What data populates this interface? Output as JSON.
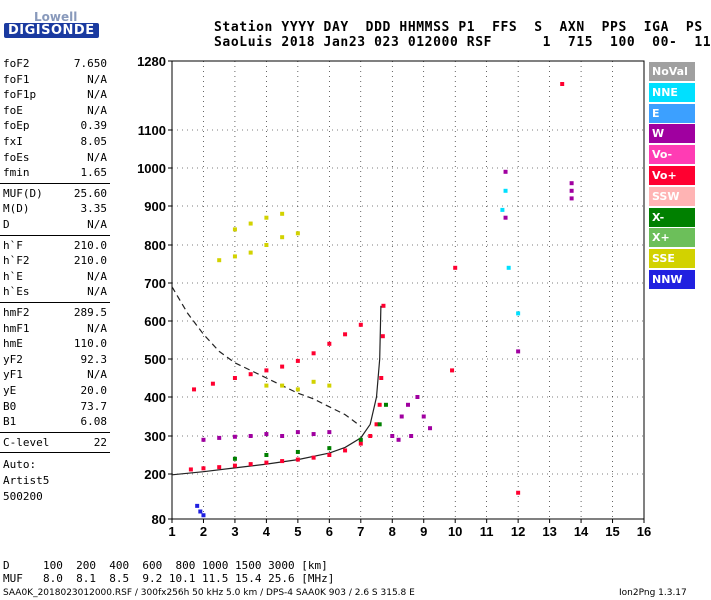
{
  "logo": {
    "line1": "Lowell",
    "line2": "DIGISONDE"
  },
  "header": {
    "line1": "Station YYYY DAY  DDD HHMMSS P1  FFS  S  AXN  PPS  IGA  PS",
    "line2": "SaoLuis 2018 Jan23 023 012000 RSF      1  715  100  00-  11"
  },
  "params": {
    "group1": [
      {
        "name": "foF2",
        "value": "7.650"
      },
      {
        "name": "foF1",
        "value": "N/A"
      },
      {
        "name": "foF1p",
        "value": "N/A"
      },
      {
        "name": "foE",
        "value": "N/A"
      },
      {
        "name": "foEp",
        "value": "0.39"
      },
      {
        "name": "fxI",
        "value": "8.05"
      },
      {
        "name": "foEs",
        "value": "N/A"
      },
      {
        "name": "fmin",
        "value": "1.65"
      }
    ],
    "group2": [
      {
        "name": "MUF(D)",
        "value": "25.60"
      },
      {
        "name": "M(D)",
        "value": "3.35"
      },
      {
        "name": "D",
        "value": "N/A"
      }
    ],
    "group3": [
      {
        "name": "h`F",
        "value": "210.0"
      },
      {
        "name": "h`F2",
        "value": "210.0"
      },
      {
        "name": "h`E",
        "value": "N/A"
      },
      {
        "name": "h`Es",
        "value": "N/A"
      }
    ],
    "group4": [
      {
        "name": "hmF2",
        "value": "289.5"
      },
      {
        "name": "hmF1",
        "value": "N/A"
      },
      {
        "name": "hmE",
        "value": "110.0"
      },
      {
        "name": "yF2",
        "value": "92.3"
      },
      {
        "name": "yF1",
        "value": "N/A"
      },
      {
        "name": "yE",
        "value": "20.0"
      },
      {
        "name": "B0",
        "value": "73.7"
      },
      {
        "name": "B1",
        "value": "6.08"
      }
    ],
    "group5": [
      {
        "name": "C-level",
        "value": "22"
      }
    ],
    "auto": [
      "Auto:",
      "Artist5",
      "500200"
    ]
  },
  "legend": [
    {
      "label": "NoVal",
      "color": "#a0a0a0"
    },
    {
      "label": "NNE",
      "color": "#00e0ff"
    },
    {
      "label": "E",
      "color": "#3ca0ff"
    },
    {
      "label": "W",
      "color": "#a000a0"
    },
    {
      "label": "Vo-",
      "color": "#ff3cb4"
    },
    {
      "label": "Vo+",
      "color": "#ff0030"
    },
    {
      "label": "SSW",
      "color": "#ffb4b4"
    },
    {
      "label": "X-",
      "color": "#008000"
    },
    {
      "label": "X+",
      "color": "#6cbf5a"
    },
    {
      "label": "SSE",
      "color": "#d2d200"
    },
    {
      "label": "NNW",
      "color": "#2020e0"
    }
  ],
  "muf_table": {
    "d_label": "D",
    "d_values": "100  200  400  600  800 1000 1500 3000 [km]",
    "muf_label": "MUF",
    "muf_values": "8.0  8.1  8.5  9.2 10.1 11.5 15.4 25.6 [MHz]"
  },
  "footer": {
    "left": "SAA0K_2018023012000.RSF / 300fx256h 50 kHz 5.0 km / DPS-4 SAA0K 903 / 2.6 S 315.8 E",
    "right": "Ion2Png 1.3.17"
  },
  "chart_data": {
    "type": "scatter",
    "title": "",
    "xlabel": "",
    "ylabel": "",
    "xlim": [
      1,
      16
    ],
    "ylim": [
      80,
      1280
    ],
    "x_ticks": [
      "1",
      "2",
      "3",
      "4",
      "5",
      "6",
      "7",
      "8",
      "9",
      "10",
      "11",
      "12",
      "13",
      "14",
      "15",
      "16"
    ],
    "y_ticks": [
      "80",
      "200",
      "300",
      "400",
      "500",
      "600",
      "700",
      "800",
      "900",
      "1000",
      "1100",
      "1280"
    ],
    "grid": "dotted",
    "axis_colors": {
      "ticks": "#000000"
    },
    "series": [
      {
        "color_key": "Vo+",
        "points": [
          [
            1.6,
            212
          ],
          [
            2.0,
            215
          ],
          [
            2.5,
            218
          ],
          [
            3.0,
            222
          ],
          [
            3.5,
            226
          ],
          [
            4.0,
            230
          ],
          [
            4.5,
            234
          ],
          [
            5.0,
            238
          ],
          [
            5.5,
            243
          ],
          [
            6.0,
            250
          ],
          [
            6.5,
            262
          ],
          [
            7.0,
            280
          ],
          [
            7.3,
            300
          ],
          [
            7.5,
            330
          ],
          [
            7.6,
            380
          ],
          [
            7.65,
            450
          ],
          [
            7.7,
            560
          ],
          [
            7.72,
            640
          ]
        ]
      },
      {
        "color_key": "Vo+",
        "points": [
          [
            1.7,
            420
          ],
          [
            2.3,
            435
          ],
          [
            3.0,
            450
          ],
          [
            3.5,
            460
          ],
          [
            4.0,
            470
          ],
          [
            4.5,
            480
          ],
          [
            5.0,
            495
          ],
          [
            5.5,
            515
          ],
          [
            6.0,
            540
          ],
          [
            6.5,
            565
          ],
          [
            7.0,
            590
          ]
        ]
      },
      {
        "color_key": "W",
        "points": [
          [
            2.0,
            290
          ],
          [
            2.5,
            295
          ],
          [
            3.0,
            298
          ],
          [
            3.5,
            300
          ],
          [
            4.0,
            305
          ],
          [
            4.5,
            300
          ],
          [
            5.0,
            310
          ],
          [
            5.5,
            305
          ],
          [
            6.0,
            310
          ]
        ]
      },
      {
        "color_key": "W",
        "points": [
          [
            8.0,
            300
          ],
          [
            8.3,
            350
          ],
          [
            8.5,
            380
          ],
          [
            8.8,
            400
          ],
          [
            9.0,
            350
          ],
          [
            9.2,
            320
          ],
          [
            8.2,
            290
          ],
          [
            8.6,
            300
          ]
        ]
      },
      {
        "color_key": "SSE",
        "points": [
          [
            2.5,
            760
          ],
          [
            3.0,
            770
          ],
          [
            3.5,
            780
          ],
          [
            4.0,
            800
          ],
          [
            4.5,
            820
          ],
          [
            5.0,
            830
          ],
          [
            3.0,
            840
          ],
          [
            3.5,
            855
          ],
          [
            4.0,
            870
          ],
          [
            4.5,
            880
          ]
        ]
      },
      {
        "color_key": "SSE",
        "points": [
          [
            4.0,
            430
          ],
          [
            4.5,
            430
          ],
          [
            5.0,
            420
          ],
          [
            5.5,
            440
          ],
          [
            6.0,
            430
          ]
        ]
      },
      {
        "color_key": "X-",
        "points": [
          [
            3.0,
            240
          ],
          [
            4.0,
            250
          ],
          [
            5.0,
            258
          ],
          [
            6.0,
            268
          ],
          [
            7.0,
            290
          ],
          [
            7.6,
            330
          ],
          [
            7.8,
            380
          ]
        ]
      },
      {
        "color_key": "W",
        "points": [
          [
            13.7,
            940
          ],
          [
            13.7,
            920
          ],
          [
            13.7,
            960
          ],
          [
            11.6,
            990
          ],
          [
            11.6,
            870
          ],
          [
            12.0,
            520
          ]
        ]
      },
      {
        "color_key": "NNE",
        "points": [
          [
            11.6,
            940
          ],
          [
            11.7,
            740
          ],
          [
            11.5,
            890
          ],
          [
            12.0,
            620
          ]
        ]
      },
      {
        "color_key": "Vo+",
        "points": [
          [
            13.4,
            1220
          ],
          [
            12.0,
            150
          ],
          [
            10.0,
            740
          ],
          [
            9.9,
            470
          ]
        ]
      },
      {
        "color_key": "NNW",
        "points": [
          [
            1.8,
            115
          ],
          [
            1.9,
            100
          ],
          [
            2.0,
            90
          ]
        ]
      }
    ],
    "curves": [
      {
        "style": "solid",
        "points": [
          [
            1,
            198
          ],
          [
            2,
            206
          ],
          [
            3,
            216
          ],
          [
            4,
            226
          ],
          [
            5,
            238
          ],
          [
            6,
            255
          ],
          [
            6.5,
            270
          ],
          [
            7,
            295
          ],
          [
            7.3,
            330
          ],
          [
            7.5,
            400
          ],
          [
            7.6,
            500
          ],
          [
            7.64,
            640
          ]
        ]
      },
      {
        "style": "dashed",
        "points": [
          [
            1,
            690
          ],
          [
            1.5,
            620
          ],
          [
            2,
            565
          ],
          [
            2.5,
            520
          ],
          [
            3,
            490
          ],
          [
            3.5,
            470
          ],
          [
            4,
            450
          ],
          [
            4.5,
            430
          ],
          [
            5,
            410
          ],
          [
            5.5,
            395
          ],
          [
            6,
            375
          ],
          [
            6.5,
            355
          ],
          [
            7,
            325
          ]
        ]
      }
    ]
  }
}
